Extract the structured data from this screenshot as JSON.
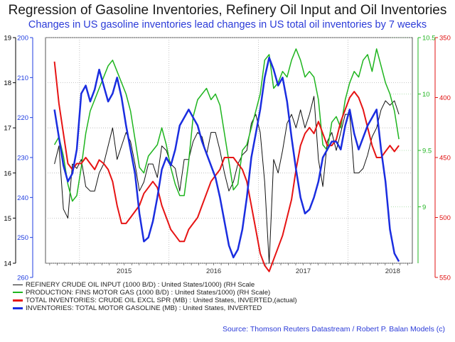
{
  "title": "Regression of Gasoline Inventories, Refinery Oil Input and Oil Inventories",
  "subtitle": "Changes in US gasoline inventories lead changes in US total oil inventories by 7 weeks",
  "source": "Source: Thomson Reuters Datastream / Robert P. Balan Models (c)",
  "chart_data": {
    "type": "line",
    "x_labels": [
      "2015",
      "2016",
      "2017",
      "2018"
    ],
    "axes": {
      "left_outer": {
        "color": "#000000",
        "ticks": [
          19,
          18,
          17,
          16,
          15,
          14
        ],
        "range": [
          14,
          19
        ]
      },
      "left_inner": {
        "color": "#1f3de0",
        "ticks": [
          200,
          210,
          220,
          230,
          240,
          250,
          260
        ],
        "range": [
          260,
          200
        ],
        "inverted": true
      },
      "right_inner": {
        "color": "#22b522",
        "ticks": [
          10.5,
          10.0,
          9.5,
          9.0
        ],
        "range": [
          8.5,
          10.5
        ]
      },
      "right_outer": {
        "color": "#e01010",
        "ticks": [
          350,
          400,
          450,
          500,
          550
        ],
        "range": [
          550,
          350
        ],
        "inverted": true
      }
    },
    "series": [
      {
        "name": "REFINERY CRUDE OIL INPUT (1000 B/D) : United States/1000) (RH Scale",
        "color": "#111111",
        "axis": "left_outer",
        "width": 1,
        "x": [
          2014.72,
          2014.77,
          2014.82,
          2014.87,
          2014.92,
          2014.97,
          2015.02,
          2015.07,
          2015.12,
          2015.17,
          2015.22,
          2015.27,
          2015.32,
          2015.37,
          2015.42,
          2015.47,
          2015.52,
          2015.57,
          2015.62,
          2015.67,
          2015.72,
          2015.77,
          2015.82,
          2015.87,
          2015.92,
          2015.97,
          2016.02,
          2016.07,
          2016.12,
          2016.17,
          2016.22,
          2016.27,
          2016.32,
          2016.37,
          2016.42,
          2016.47,
          2016.52,
          2016.57,
          2016.62,
          2016.67,
          2016.72,
          2016.77,
          2016.82,
          2016.87,
          2016.92,
          2016.97,
          2017.02,
          2017.07,
          2017.12,
          2017.17,
          2017.22,
          2017.27,
          2017.32,
          2017.37,
          2017.42,
          2017.47,
          2017.52,
          2017.57,
          2017.62,
          2017.67,
          2017.72,
          2017.77,
          2017.82,
          2017.87,
          2017.92,
          2017.97,
          2018.02,
          2018.07,
          2018.12,
          2018.17,
          2018.22,
          2018.27,
          2018.32,
          2018.37,
          2018.42,
          2018.47,
          2018.52,
          2018.57
        ],
        "y": [
          16.2,
          16.6,
          15.2,
          15.0,
          16.2,
          16.1,
          16.3,
          15.7,
          15.6,
          15.6,
          16.0,
          16.2,
          16.6,
          17.0,
          16.3,
          16.6,
          16.9,
          16.7,
          16.2,
          15.6,
          15.8,
          16.2,
          16.2,
          15.9,
          16.6,
          16.5,
          16.2,
          16.1,
          15.6,
          16.3,
          16.3,
          16.7,
          16.9,
          16.8,
          16.4,
          16.9,
          16.9,
          16.5,
          16.0,
          15.6,
          15.8,
          16.2,
          16.4,
          16.5,
          17.1,
          17.3,
          16.9,
          15.8,
          14.0,
          16.3,
          16.0,
          16.5,
          17.1,
          17.3,
          17.0,
          17.4,
          17.0,
          17.3,
          17.7,
          16.3,
          15.7,
          16.7,
          16.9,
          16.5,
          16.9,
          17.3,
          17.3,
          16.0,
          16.0,
          16.1,
          16.4,
          16.8,
          17.0,
          17.4,
          17.6,
          17.5,
          17.6,
          17.3
        ]
      },
      {
        "name": "PRODUCTION: FINS MOTOR GAS (1000 B/D) : United States/1000) (RH Scale)",
        "color": "#1fb51f",
        "axis": "right_inner",
        "width": 1.5,
        "x": [
          2014.72,
          2014.77,
          2014.82,
          2014.87,
          2014.92,
          2014.97,
          2015.02,
          2015.07,
          2015.12,
          2015.17,
          2015.22,
          2015.27,
          2015.32,
          2015.37,
          2015.42,
          2015.47,
          2015.52,
          2015.57,
          2015.62,
          2015.67,
          2015.72,
          2015.77,
          2015.82,
          2015.87,
          2015.92,
          2015.97,
          2016.02,
          2016.07,
          2016.12,
          2016.17,
          2016.22,
          2016.27,
          2016.32,
          2016.37,
          2016.42,
          2016.47,
          2016.52,
          2016.57,
          2016.62,
          2016.67,
          2016.72,
          2016.77,
          2016.82,
          2016.87,
          2016.92,
          2016.97,
          2017.02,
          2017.07,
          2017.12,
          2017.17,
          2017.22,
          2017.27,
          2017.32,
          2017.37,
          2017.42,
          2017.47,
          2017.52,
          2017.57,
          2017.62,
          2017.67,
          2017.72,
          2017.77,
          2017.82,
          2017.87,
          2017.92,
          2017.97,
          2018.02,
          2018.07,
          2018.12,
          2018.17,
          2018.22,
          2018.27,
          2018.32,
          2018.37,
          2018.42,
          2018.47,
          2018.52,
          2018.57
        ],
        "y": [
          9.55,
          9.62,
          9.45,
          9.2,
          9.05,
          9.1,
          9.35,
          9.65,
          9.85,
          9.95,
          10.05,
          10.15,
          10.25,
          10.3,
          10.2,
          10.1,
          10.0,
          9.85,
          9.6,
          9.35,
          9.3,
          9.45,
          9.5,
          9.55,
          9.7,
          9.55,
          9.35,
          9.2,
          9.1,
          9.1,
          9.4,
          9.8,
          9.95,
          10.0,
          10.05,
          9.95,
          10.0,
          9.9,
          9.65,
          9.4,
          9.15,
          9.2,
          9.5,
          9.55,
          9.7,
          9.85,
          10.0,
          10.3,
          10.35,
          10.05,
          10.1,
          10.2,
          10.15,
          10.3,
          10.4,
          10.3,
          10.15,
          10.2,
          10.15,
          9.95,
          9.55,
          9.5,
          9.75,
          9.8,
          9.7,
          9.95,
          10.1,
          10.2,
          10.15,
          10.3,
          10.35,
          10.2,
          10.4,
          10.25,
          10.1,
          10.0,
          9.85,
          9.6
        ]
      },
      {
        "name": "TOTAL INVENTORIES: CRUDE OIL EXCL SPR (MB) : United States, INVERTED,(actual)",
        "color": "#e61414",
        "axis": "right_outer",
        "width": 2,
        "x": [
          2014.72,
          2014.77,
          2014.82,
          2014.87,
          2014.92,
          2014.97,
          2015.02,
          2015.07,
          2015.12,
          2015.17,
          2015.22,
          2015.27,
          2015.32,
          2015.37,
          2015.42,
          2015.47,
          2015.52,
          2015.57,
          2015.62,
          2015.67,
          2015.72,
          2015.77,
          2015.82,
          2015.87,
          2015.92,
          2015.97,
          2016.02,
          2016.07,
          2016.12,
          2016.17,
          2016.22,
          2016.27,
          2016.32,
          2016.37,
          2016.42,
          2016.47,
          2016.52,
          2016.57,
          2016.62,
          2016.67,
          2016.72,
          2016.77,
          2016.82,
          2016.87,
          2016.92,
          2016.97,
          2017.02,
          2017.07,
          2017.12,
          2017.17,
          2017.22,
          2017.27,
          2017.32,
          2017.37,
          2017.42,
          2017.47,
          2017.52,
          2017.57,
          2017.62,
          2017.67,
          2017.72,
          2017.77,
          2017.82,
          2017.87,
          2017.92,
          2017.97,
          2018.02,
          2018.07,
          2018.12,
          2018.17,
          2018.22,
          2018.27,
          2018.32,
          2018.37,
          2018.42,
          2018.47,
          2018.52,
          2018.57
        ],
        "y": [
          370,
          405,
          430,
          455,
          460,
          455,
          455,
          450,
          455,
          460,
          452,
          455,
          460,
          470,
          490,
          505,
          505,
          500,
          495,
          490,
          480,
          475,
          470,
          475,
          490,
          500,
          510,
          515,
          520,
          520,
          510,
          505,
          500,
          490,
          480,
          470,
          465,
          460,
          450,
          450,
          450,
          455,
          460,
          470,
          490,
          510,
          530,
          540,
          545,
          535,
          525,
          515,
          500,
          485,
          460,
          440,
          430,
          425,
          430,
          420,
          430,
          440,
          440,
          435,
          420,
          410,
          400,
          395,
          400,
          410,
          425,
          440,
          450,
          450,
          445,
          440,
          445,
          440
        ]
      },
      {
        "name": "INVENTORIES: TOTAL MOTOR GASOLINE (MB) : United States, INVERTED",
        "color": "#1a2de0",
        "axis": "left_inner",
        "width": 2.5,
        "x": [
          2014.72,
          2014.77,
          2014.82,
          2014.87,
          2014.92,
          2014.97,
          2015.02,
          2015.07,
          2015.12,
          2015.17,
          2015.22,
          2015.27,
          2015.32,
          2015.37,
          2015.42,
          2015.47,
          2015.52,
          2015.57,
          2015.62,
          2015.67,
          2015.72,
          2015.77,
          2015.82,
          2015.87,
          2015.92,
          2015.97,
          2016.02,
          2016.07,
          2016.12,
          2016.17,
          2016.22,
          2016.27,
          2016.32,
          2016.37,
          2016.42,
          2016.47,
          2016.52,
          2016.57,
          2016.62,
          2016.67,
          2016.72,
          2016.77,
          2016.82,
          2016.87,
          2016.92,
          2016.97,
          2017.02,
          2017.07,
          2017.12,
          2017.17,
          2017.22,
          2017.27,
          2017.32,
          2017.37,
          2017.42,
          2017.47,
          2017.52,
          2017.57,
          2017.62,
          2017.67,
          2017.72,
          2017.77,
          2017.82,
          2017.87,
          2017.92,
          2017.97,
          2018.02,
          2018.07,
          2018.12,
          2018.17,
          2018.22,
          2018.27,
          2018.32,
          2018.37,
          2018.42,
          2018.47,
          2018.52,
          2018.57
        ],
        "y": [
          218,
          225,
          232,
          236,
          234,
          228,
          214,
          212,
          216,
          213,
          208,
          212,
          216,
          214,
          210,
          215,
          222,
          228,
          234,
          244,
          251,
          250,
          246,
          240,
          233,
          230,
          232,
          228,
          222,
          220,
          218,
          220,
          222,
          226,
          229,
          232,
          235,
          240,
          246,
          252,
          255,
          253,
          248,
          240,
          230,
          224,
          218,
          210,
          205,
          208,
          212,
          210,
          216,
          225,
          233,
          240,
          244,
          243,
          240,
          236,
          230,
          228,
          226,
          226,
          228,
          222,
          218,
          224,
          228,
          225,
          222,
          220,
          218,
          228,
          236,
          248,
          254,
          256
        ]
      }
    ]
  }
}
